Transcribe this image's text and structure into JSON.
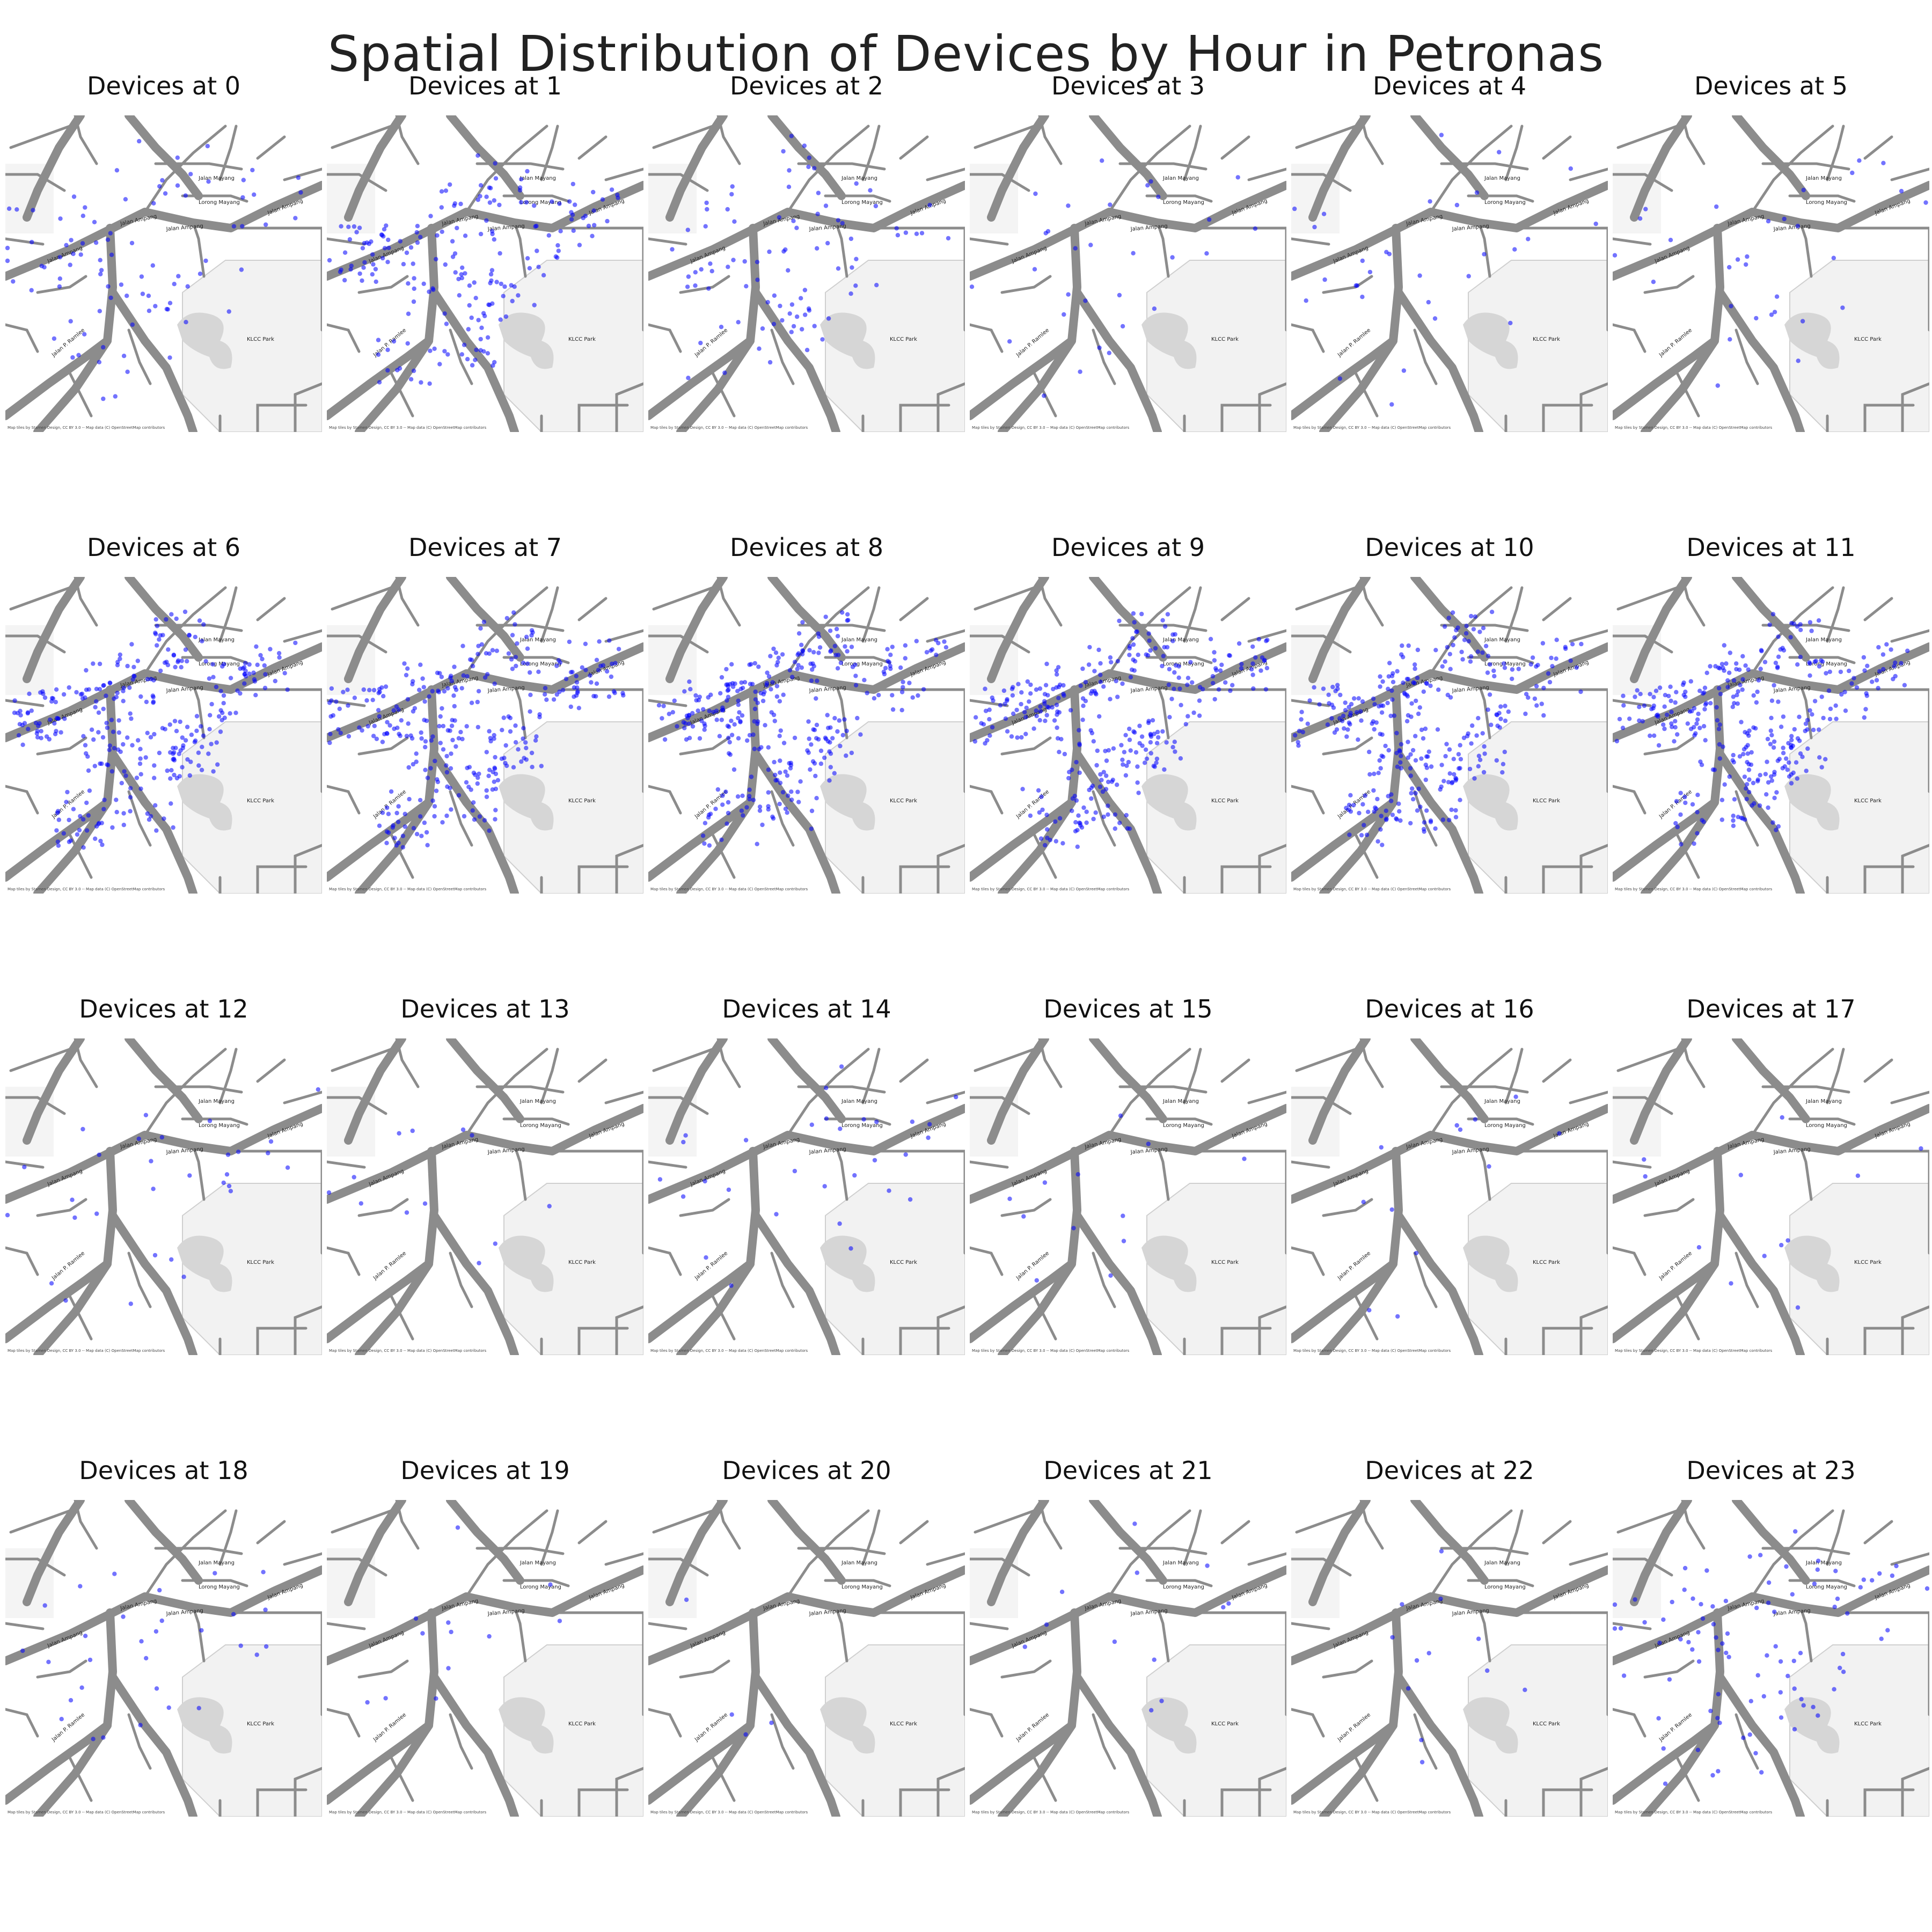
{
  "title": "Spatial Distribution of Devices by Hour in Petronas",
  "map_labels": {
    "park": "KLCC Park",
    "road_ampang": "Jalan Ampang",
    "road_ampang_2": "Jalan Ampang",
    "road_ampang_3": "Jalan Ampang",
    "road_ampang_4": "Jalan Ampang",
    "road_ramlee": "Jalan P. Ramlee",
    "road_lorong": "Lorong Mayang",
    "road_mayang": "Jalan Mayang",
    "attribution": "Map tiles by Stamen Design, CC BY 3.0 -- Map data (C) OpenStreetMap contributors"
  },
  "colors": {
    "device": "#0000ff",
    "road": "#8c8c8c",
    "park": "#f2f2f2",
    "water": "#d6d6d6"
  },
  "chart_data": {
    "type": "scatter",
    "panels": [
      {
        "title": "Devices at 0",
        "hour": 0,
        "density": "medium"
      },
      {
        "title": "Devices at 1",
        "hour": 1,
        "density": "high"
      },
      {
        "title": "Devices at 2",
        "hour": 2,
        "density": "medium"
      },
      {
        "title": "Devices at 3",
        "hour": 3,
        "density": "low"
      },
      {
        "title": "Devices at 4",
        "hour": 4,
        "density": "low"
      },
      {
        "title": "Devices at 5",
        "hour": 5,
        "density": "low"
      },
      {
        "title": "Devices at 6",
        "hour": 6,
        "density": "very-high"
      },
      {
        "title": "Devices at 7",
        "hour": 7,
        "density": "very-high"
      },
      {
        "title": "Devices at 8",
        "hour": 8,
        "density": "very-high"
      },
      {
        "title": "Devices at 9",
        "hour": 9,
        "density": "very-high"
      },
      {
        "title": "Devices at 10",
        "hour": 10,
        "density": "very-high"
      },
      {
        "title": "Devices at 11",
        "hour": 11,
        "density": "very-high"
      },
      {
        "title": "Devices at 12",
        "hour": 12,
        "density": "low"
      },
      {
        "title": "Devices at 13",
        "hour": 13,
        "density": "very-low"
      },
      {
        "title": "Devices at 14",
        "hour": 14,
        "density": "low"
      },
      {
        "title": "Devices at 15",
        "hour": 15,
        "density": "very-low"
      },
      {
        "title": "Devices at 16",
        "hour": 16,
        "density": "very-low"
      },
      {
        "title": "Devices at 17",
        "hour": 17,
        "density": "very-low"
      },
      {
        "title": "Devices at 18",
        "hour": 18,
        "density": "low"
      },
      {
        "title": "Devices at 19",
        "hour": 19,
        "density": "very-low"
      },
      {
        "title": "Devices at 20",
        "hour": 20,
        "density": "minimal"
      },
      {
        "title": "Devices at 21",
        "hour": 21,
        "density": "very-low"
      },
      {
        "title": "Devices at 22",
        "hour": 22,
        "density": "very-low"
      },
      {
        "title": "Devices at 23",
        "hour": 23,
        "density": "medium"
      }
    ]
  }
}
